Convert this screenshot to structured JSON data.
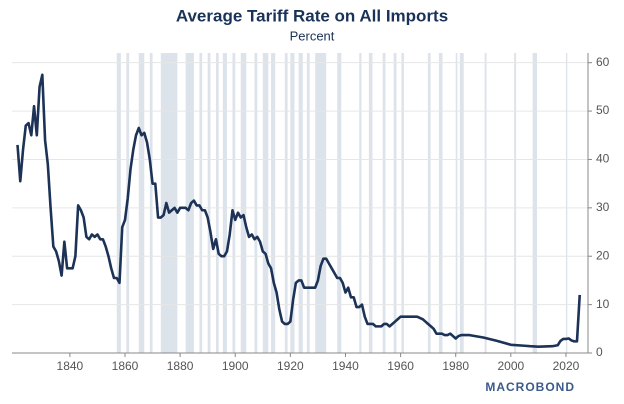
{
  "chart_data": {
    "type": "line",
    "title": "Average Tariff Rate on All Imports",
    "subtitle": "Percent",
    "source": "MACROBOND",
    "x": [
      1821,
      1822,
      1823,
      1824,
      1825,
      1826,
      1827,
      1828,
      1829,
      1830,
      1831,
      1832,
      1833,
      1834,
      1835,
      1836,
      1837,
      1838,
      1839,
      1840,
      1841,
      1842,
      1843,
      1844,
      1845,
      1846,
      1847,
      1848,
      1849,
      1850,
      1851,
      1852,
      1853,
      1854,
      1855,
      1856,
      1857,
      1858,
      1859,
      1860,
      1861,
      1862,
      1863,
      1864,
      1865,
      1866,
      1867,
      1868,
      1869,
      1870,
      1871,
      1872,
      1873,
      1874,
      1875,
      1876,
      1877,
      1878,
      1879,
      1880,
      1881,
      1882,
      1883,
      1884,
      1885,
      1886,
      1887,
      1888,
      1889,
      1890,
      1891,
      1892,
      1893,
      1894,
      1895,
      1896,
      1897,
      1898,
      1899,
      1900,
      1901,
      1902,
      1903,
      1904,
      1905,
      1906,
      1907,
      1908,
      1909,
      1910,
      1911,
      1912,
      1913,
      1914,
      1915,
      1916,
      1917,
      1918,
      1919,
      1920,
      1921,
      1922,
      1923,
      1924,
      1925,
      1926,
      1927,
      1928,
      1929,
      1930,
      1931,
      1932,
      1933,
      1934,
      1935,
      1936,
      1937,
      1938,
      1939,
      1940,
      1941,
      1942,
      1943,
      1944,
      1945,
      1946,
      1947,
      1948,
      1949,
      1950,
      1951,
      1952,
      1953,
      1954,
      1955,
      1956,
      1957,
      1958,
      1959,
      1960,
      1962,
      1964,
      1966,
      1968,
      1969,
      1970,
      1971,
      1972,
      1973,
      1974,
      1975,
      1976,
      1977,
      1978,
      1979,
      1980,
      1981,
      1982,
      1985,
      1990,
      1995,
      2000,
      2005,
      2007,
      2010,
      2015,
      2017,
      2018,
      2019,
      2020,
      2021,
      2022,
      2023,
      2024,
      2025
    ],
    "series": [
      {
        "name": "Average tariff rate",
        "color": "#1c3256",
        "values": [
          43,
          35.5,
          42,
          47,
          47.5,
          45,
          51,
          45,
          55,
          57.5,
          44,
          39,
          30,
          22,
          21,
          19,
          16,
          23,
          17.5,
          17.5,
          17.5,
          20,
          30.5,
          29.5,
          28,
          24,
          23.5,
          24.5,
          24,
          24.5,
          23.5,
          23.5,
          22,
          20,
          17.5,
          15.5,
          15.5,
          14.5,
          26,
          27.5,
          32,
          38,
          42,
          45,
          46.5,
          45,
          45.5,
          43.5,
          40,
          35,
          35,
          28,
          28,
          28.5,
          31,
          29,
          29.5,
          30,
          29,
          30,
          30,
          30,
          29.5,
          31,
          31.5,
          30.5,
          30.5,
          29.5,
          29.5,
          28,
          25,
          21.5,
          23.5,
          20.5,
          20,
          20,
          21,
          24.5,
          29.5,
          27.5,
          29,
          28,
          28.5,
          26,
          24,
          24.5,
          23.5,
          24,
          23,
          21,
          20.5,
          18.5,
          17.5,
          14.5,
          12.5,
          9,
          6.5,
          6,
          6,
          6.5,
          11,
          14.5,
          15,
          15,
          13.5,
          13.5,
          13.5,
          13.5,
          13.5,
          15,
          18,
          19.5,
          19.5,
          18.5,
          17.5,
          16.5,
          15.5,
          15.5,
          14.5,
          12.5,
          13.5,
          11.5,
          11.5,
          9.5,
          9.5,
          10,
          7.5,
          6,
          6,
          6,
          5.5,
          5.5,
          5.5,
          6,
          6,
          5.5,
          6,
          6.5,
          7,
          7.5,
          7.5,
          7.5,
          7.5,
          7,
          6.5,
          6,
          5.5,
          5,
          4,
          4,
          4,
          3.7,
          3.7,
          4,
          3.5,
          3,
          3.5,
          3.7,
          3.7,
          3.2,
          2.5,
          1.7,
          1.5,
          1.4,
          1.3,
          1.4,
          1.6,
          2.5,
          2.9,
          2.9,
          3,
          2.6,
          2.4,
          2.4,
          12
        ]
      }
    ],
    "shaded_periods": [
      [
        1857,
        1858.5
      ],
      [
        1860.5,
        1861.5
      ],
      [
        1865,
        1867
      ],
      [
        1869,
        1870
      ],
      [
        1873,
        1879
      ],
      [
        1882,
        1885
      ],
      [
        1887,
        1888
      ],
      [
        1890,
        1891
      ],
      [
        1893,
        1894
      ],
      [
        1895.5,
        1897
      ],
      [
        1899,
        1900
      ],
      [
        1902,
        1904
      ],
      [
        1907,
        1908
      ],
      [
        1910,
        1912
      ],
      [
        1913,
        1914.5
      ],
      [
        1918,
        1919
      ],
      [
        1920,
        1921.5
      ],
      [
        1923,
        1924.5
      ],
      [
        1926,
        1927
      ],
      [
        1929,
        1933
      ],
      [
        1937,
        1938.5
      ],
      [
        1945,
        1945.8
      ],
      [
        1948.5,
        1949.8
      ],
      [
        1953.5,
        1954.5
      ],
      [
        1957.5,
        1958.5
      ],
      [
        1960.3,
        1961.2
      ],
      [
        1969.9,
        1970.9
      ],
      [
        1973.9,
        1975.2
      ],
      [
        1980,
        1980.6
      ],
      [
        1981.5,
        1982.9
      ],
      [
        1990.5,
        1991.2
      ],
      [
        2001.2,
        2001.9
      ],
      [
        2007.9,
        2009.5
      ],
      [
        2020,
        2020.5
      ]
    ],
    "xlim": [
      1819,
      2028
    ],
    "xticks": [
      1840,
      1860,
      1880,
      1900,
      1920,
      1940,
      1960,
      1980,
      2000,
      2020
    ],
    "ylim": [
      0,
      62
    ],
    "yticks": [
      0,
      10,
      20,
      30,
      40,
      50,
      60
    ],
    "grid": true
  }
}
